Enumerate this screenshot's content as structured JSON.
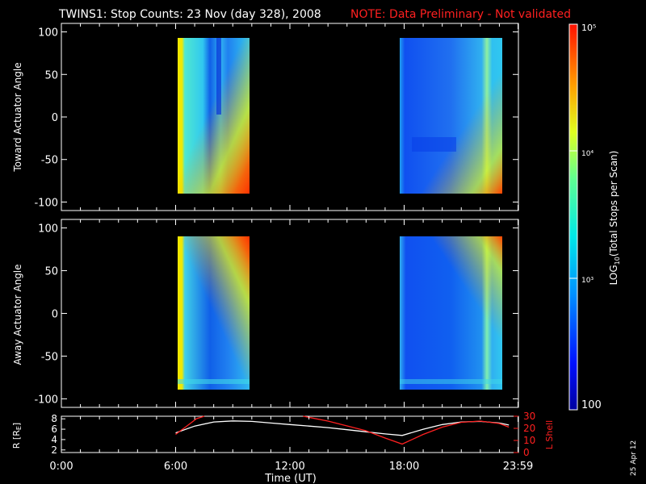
{
  "title": {
    "main": "TWINS1: Stop Counts: 23 Nov (day 328), 2008",
    "note": "NOTE: Data Preliminary - Not validated"
  },
  "colorbar": {
    "label": "LOG10(Total Stops per Scan)",
    "label_prefix": "LOG",
    "label_sub": "10",
    "label_suffix": "(Total Stops per Scan)",
    "ticks": [
      "100",
      "10³",
      "10⁴",
      "10⁵"
    ],
    "range": [
      100,
      100000
    ],
    "scale": "log"
  },
  "date_stamp": "25 Apr 12",
  "chart_data": [
    {
      "type": "heatmap",
      "ylabel": "Toward Actuator Angle",
      "yticks": [
        "100",
        "50",
        "0",
        "-50",
        "-100"
      ],
      "ylim": [
        -110,
        110
      ],
      "xlim": [
        0,
        24
      ],
      "y_extent": [
        -88,
        90
      ],
      "blocks": [
        {
          "x_start": 6.0,
          "x_end": 9.9,
          "character": "yellow band at start, high counts (red) toward -90 deg later in pass"
        },
        {
          "x_start": 17.9,
          "x_end": 22.6,
          "character": "mostly blue/cyan, high counts toward -90 deg at end of pass"
        }
      ]
    },
    {
      "type": "heatmap",
      "ylabel": "Away Actuator Angle",
      "yticks": [
        "100",
        "50",
        "0",
        "-50",
        "-100"
      ],
      "ylim": [
        -110,
        110
      ],
      "xlim": [
        0,
        24
      ],
      "y_extent": [
        -88,
        90
      ],
      "blocks": [
        {
          "x_start": 6.0,
          "x_end": 9.9,
          "character": "yellow band at start, high counts near +90 deg"
        },
        {
          "x_start": 17.9,
          "x_end": 22.6,
          "character": "mostly blue, high counts near +90 deg at end of pass"
        }
      ]
    },
    {
      "type": "line",
      "ylabel": "R [RE]",
      "ylabel_main": "R [R",
      "ylabel_sub": "E",
      "ylabel_close": "]",
      "y2label": "L Shell",
      "yticks": [
        "8",
        "6",
        "4",
        "2"
      ],
      "ylim": [
        1.5,
        8.5
      ],
      "y2ticks": [
        "30",
        "20",
        "10",
        "0"
      ],
      "y2lim": [
        0,
        30
      ],
      "xlabel": "Time (UT)",
      "xticks": [
        "0:00",
        "6:00",
        "12:00",
        "18:00",
        "23:59"
      ],
      "xtick_values": [
        0,
        6,
        12,
        18,
        23.98
      ],
      "xlim": [
        0,
        24
      ],
      "series": [
        {
          "color": "#ffffff",
          "axis": "R",
          "x": [
            6.0,
            7.0,
            8.0,
            9.0,
            10.0,
            11.0,
            12.0,
            13.0,
            14.0,
            15.0,
            16.0,
            17.0,
            17.9,
            19.0,
            20.0,
            21.0,
            22.0,
            23.0,
            23.5
          ],
          "y": [
            5.3,
            6.6,
            7.4,
            7.6,
            7.5,
            7.2,
            6.9,
            6.6,
            6.3,
            5.9,
            5.5,
            5.1,
            4.8,
            6.0,
            6.9,
            7.4,
            7.5,
            7.2,
            6.8
          ]
        },
        {
          "color": "#ff2020",
          "axis": "L",
          "x": [
            6.0,
            6.6,
            7.1,
            7.5
          ],
          "y": [
            15,
            22,
            28,
            30
          ]
        },
        {
          "color": "#ff2020",
          "axis": "L",
          "x": [
            12.7,
            14.0,
            15.0,
            16.0,
            17.0,
            17.9,
            19.0,
            20.0,
            21.0,
            22.0,
            23.0,
            23.5
          ],
          "y": [
            30,
            26,
            22,
            18,
            12,
            7,
            15,
            21,
            25,
            26,
            24,
            21
          ]
        }
      ]
    }
  ]
}
